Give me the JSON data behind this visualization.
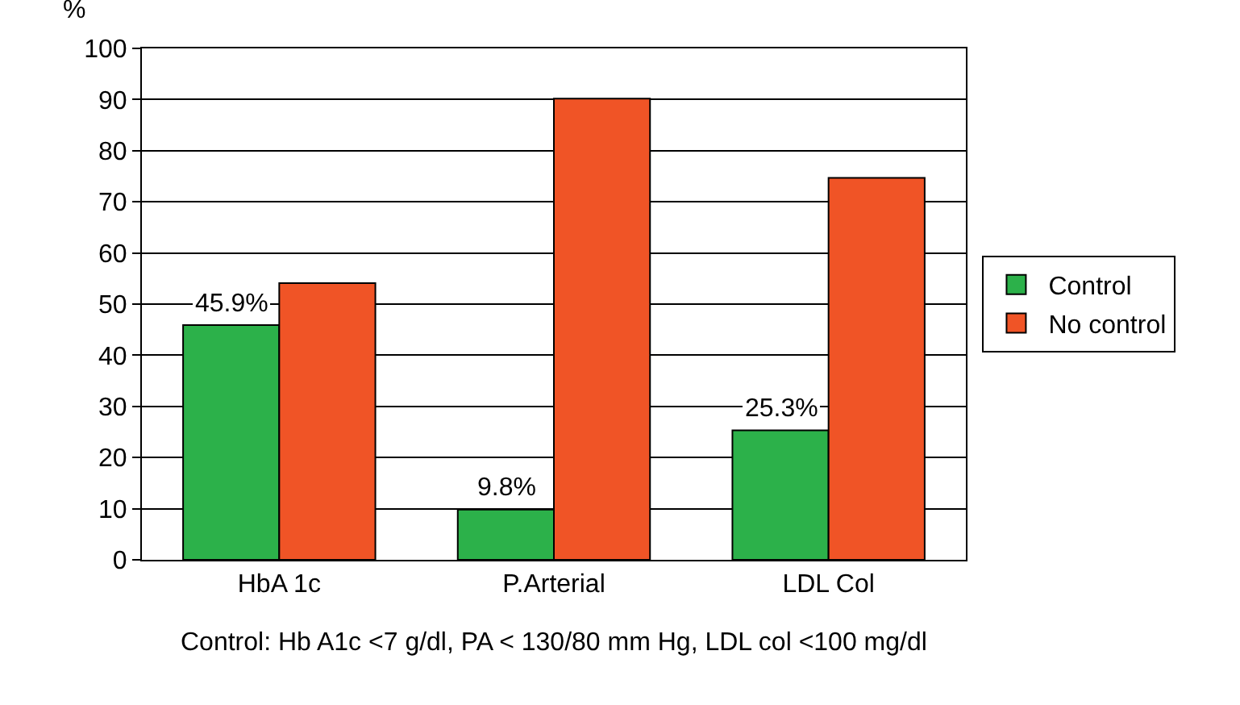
{
  "chart_data": {
    "type": "bar",
    "ylabel": "%",
    "categories": [
      "HbA 1c",
      "P.Arterial",
      "LDL Col"
    ],
    "series": [
      {
        "name": "Control",
        "color": "#2cb14a",
        "values": [
          45.9,
          9.8,
          25.3
        ],
        "value_labels": [
          "45.9%",
          "9.8%",
          "25.3%"
        ]
      },
      {
        "name": "No control",
        "color": "#f05426",
        "values": [
          54.1,
          90.2,
          74.7
        ]
      }
    ],
    "ylim": [
      0,
      100
    ],
    "yticks": [
      0,
      10,
      20,
      30,
      40,
      50,
      60,
      70,
      80,
      90,
      100
    ],
    "grid": "y",
    "legend": "right",
    "annotations": [
      "Control: Hb A1c <7 g/dl, PA < 130/80 mm Hg, LDL col <100 mg/dl"
    ]
  }
}
